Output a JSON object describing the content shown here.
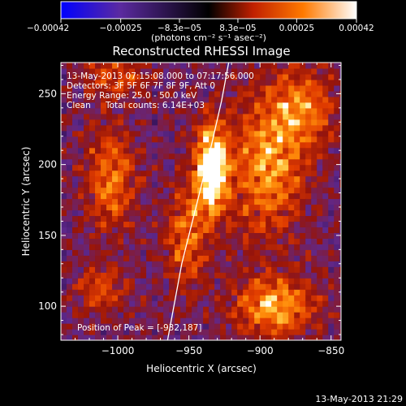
{
  "chart_data": {
    "type": "heatmap",
    "title": "Reconstructed RHESSI Image",
    "xlabel": "Heliocentric X (arcsec)",
    "ylabel": "Heliocentric Y (arcsec)",
    "xlim": [
      -1040,
      -843
    ],
    "ylim": [
      76,
      272
    ],
    "x_ticks": [
      -1000,
      -950,
      -900,
      -850
    ],
    "x_tick_labels": [
      "−1000",
      "−950",
      "−900",
      "−850"
    ],
    "y_ticks": [
      100,
      150,
      200,
      250
    ],
    "y_tick_labels": [
      "100",
      "150",
      "200",
      "250"
    ],
    "colorbar": {
      "range": [
        -0.00042,
        0.00042
      ],
      "ticks": [
        -0.00042,
        -0.00025,
        -8.3e-05,
        8.3e-05,
        0.00025,
        0.00042
      ],
      "tick_labels": [
        "−0.00042",
        "−0.00025",
        "−8.3e−05",
        "8.3e−05",
        "0.00025",
        "0.00042"
      ],
      "unit_label": "(photons cm⁻² s⁻¹ asec⁻²)",
      "colors": [
        "#0000ff",
        "#5b2aa0",
        "#000000",
        "#c02000",
        "#ff7a00",
        "#ffffff"
      ]
    },
    "annotations": [
      "13-May-2013 07:15:08.000 to 07:17:56.000",
      "Detectors: 3F 5F 6F 7F 8F 9F, Att 0",
      "Energy Range: 25.0 - 50.0 keV",
      "Clean",
      "Total counts: 6.14E+03"
    ],
    "peak_label": "Position of Peak = [-932,187]",
    "peak": {
      "x": -932,
      "y": 187
    },
    "limb": [
      [
        -965,
        76
      ],
      [
        -955,
        130
      ],
      [
        -945,
        170
      ],
      [
        -935,
        210
      ],
      [
        -927,
        245
      ],
      [
        -922,
        272
      ]
    ],
    "hotspots": [
      {
        "x": -934,
        "y": 197,
        "amp": 1.0,
        "sx": 8,
        "sy": 22
      },
      {
        "x": -952,
        "y": 150,
        "amp": 0.45,
        "sx": 10,
        "sy": 25
      },
      {
        "x": -895,
        "y": 200,
        "amp": 0.55,
        "sx": 18,
        "sy": 35
      },
      {
        "x": -890,
        "y": 100,
        "amp": 0.6,
        "sx": 20,
        "sy": 15
      },
      {
        "x": -870,
        "y": 240,
        "amp": 0.45,
        "sx": 15,
        "sy": 20
      },
      {
        "x": -1005,
        "y": 190,
        "amp": 0.5,
        "sx": 12,
        "sy": 25
      },
      {
        "x": -1012,
        "y": 112,
        "amp": 0.35,
        "sx": 12,
        "sy": 12
      },
      {
        "x": -1000,
        "y": 262,
        "amp": 0.35,
        "sx": 15,
        "sy": 10
      }
    ],
    "timestamp": "13-May-2013 21:29"
  }
}
